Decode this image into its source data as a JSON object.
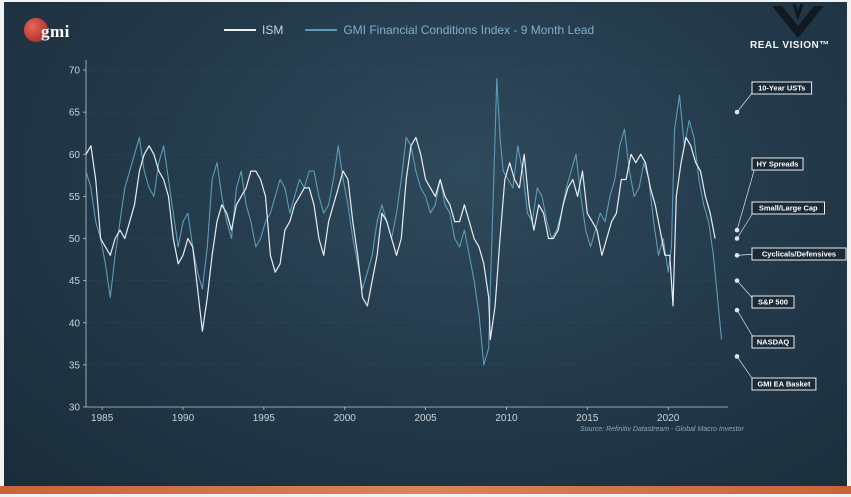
{
  "branding": {
    "gmi_logo": "gmi",
    "real_vision": "REAL VISION™"
  },
  "colors": {
    "ism": "#e8eef2",
    "gmi_fci": "#5d9bb8",
    "background": "#243b4c",
    "bottom_bar": "#c9643a"
  },
  "source": "Source: Refinitiv Datastream - Global Macro Investor",
  "chart_data": {
    "type": "line",
    "title": "",
    "xlabel": "",
    "ylabel": "",
    "xlim": [
      1984.0,
      2023.7
    ],
    "ylim": [
      30,
      70
    ],
    "x_ticks": [
      1985,
      1990,
      1995,
      2000,
      2005,
      2010,
      2015,
      2020
    ],
    "x_tick_labels": [
      "1985",
      "1990",
      "1995",
      "2000",
      "2005",
      "2010",
      "2015",
      "2020"
    ],
    "y_ticks": [
      30,
      35,
      40,
      45,
      50,
      55,
      60,
      65,
      70
    ],
    "y_tick_labels": [
      "30",
      "35",
      "40",
      "45",
      "50",
      "55",
      "60",
      "65",
      "70"
    ],
    "grid": true,
    "legend": "top-center",
    "series": [
      {
        "name": "ISM",
        "color": "#e8eef2",
        "x": [
          1984.0,
          1984.3,
          1984.6,
          1984.9,
          1985.2,
          1985.5,
          1985.8,
          1986.1,
          1986.4,
          1986.7,
          1987.0,
          1987.3,
          1987.6,
          1987.9,
          1988.2,
          1988.5,
          1988.8,
          1989.1,
          1989.4,
          1989.7,
          1990.0,
          1990.3,
          1990.6,
          1990.9,
          1991.2,
          1991.5,
          1991.8,
          1992.1,
          1992.4,
          1992.7,
          1993.0,
          1993.3,
          1993.6,
          1993.9,
          1994.2,
          1994.5,
          1994.8,
          1995.1,
          1995.4,
          1995.7,
          1996.0,
          1996.3,
          1996.6,
          1996.9,
          1997.2,
          1997.5,
          1997.8,
          1998.1,
          1998.4,
          1998.7,
          1999.0,
          1999.3,
          1999.6,
          1999.9,
          2000.2,
          2000.5,
          2000.8,
          2001.1,
          2001.4,
          2001.7,
          2002.0,
          2002.3,
          2002.6,
          2002.9,
          2003.2,
          2003.5,
          2003.8,
          2004.1,
          2004.4,
          2004.7,
          2005.0,
          2005.3,
          2005.6,
          2005.9,
          2006.2,
          2006.5,
          2006.8,
          2007.1,
          2007.4,
          2007.7,
          2008.0,
          2008.3,
          2008.6,
          2008.9,
          2009.0,
          2009.3,
          2009.6,
          2009.9,
          2010.2,
          2010.5,
          2010.8,
          2011.1,
          2011.4,
          2011.7,
          2012.0,
          2012.3,
          2012.6,
          2012.9,
          2013.2,
          2013.5,
          2013.8,
          2014.1,
          2014.4,
          2014.7,
          2015.0,
          2015.3,
          2015.6,
          2015.9,
          2016.2,
          2016.5,
          2016.8,
          2017.1,
          2017.4,
          2017.7,
          2018.0,
          2018.3,
          2018.6,
          2018.9,
          2019.2,
          2019.5,
          2019.8,
          2020.1,
          2020.3,
          2020.5,
          2020.8,
          2021.1,
          2021.4,
          2021.7,
          2022.0,
          2022.3,
          2022.6,
          2022.9
        ],
        "values": [
          60,
          61,
          57,
          50,
          49,
          48,
          50,
          51,
          50,
          52,
          54,
          58,
          60,
          61,
          60,
          58,
          57,
          55,
          50,
          47,
          48,
          50,
          49,
          44,
          39,
          43,
          48,
          52,
          54,
          53,
          51,
          54,
          55,
          56,
          58,
          58,
          57,
          55,
          48,
          46,
          47,
          51,
          52,
          54,
          55,
          56,
          56,
          54,
          50,
          48,
          52,
          54,
          56,
          58,
          57,
          52,
          48,
          43,
          42,
          45,
          48,
          53,
          52,
          50,
          48,
          50,
          57,
          61,
          62,
          60,
          57,
          56,
          55,
          57,
          55,
          54,
          52,
          52,
          54,
          52,
          50,
          49,
          47,
          43,
          38,
          42,
          50,
          57,
          59,
          57,
          56,
          60,
          54,
          51,
          54,
          53,
          50,
          50,
          51,
          54,
          56,
          57,
          55,
          58,
          53,
          52,
          51,
          48,
          50,
          52,
          53,
          57,
          57,
          60,
          59,
          60,
          59,
          56,
          54,
          51,
          48,
          48,
          42,
          55,
          59,
          62,
          61,
          59,
          58,
          55,
          53,
          50
        ]
      },
      {
        "name": "GMI Financial Conditions Index - 9 Month Lead",
        "color": "#5d9bb8",
        "x": [
          1984.0,
          1984.3,
          1984.6,
          1984.9,
          1985.2,
          1985.5,
          1985.8,
          1986.1,
          1986.4,
          1986.7,
          1987.0,
          1987.3,
          1987.6,
          1987.9,
          1988.2,
          1988.5,
          1988.8,
          1989.1,
          1989.4,
          1989.7,
          1990.0,
          1990.3,
          1990.6,
          1990.9,
          1991.2,
          1991.5,
          1991.8,
          1992.1,
          1992.4,
          1992.7,
          1993.0,
          1993.3,
          1993.6,
          1993.9,
          1994.2,
          1994.5,
          1994.8,
          1995.1,
          1995.4,
          1995.7,
          1996.0,
          1996.3,
          1996.6,
          1996.9,
          1997.2,
          1997.5,
          1997.8,
          1998.1,
          1998.4,
          1998.7,
          1999.0,
          1999.3,
          1999.6,
          1999.9,
          2000.2,
          2000.5,
          2000.8,
          2001.1,
          2001.4,
          2001.7,
          2002.0,
          2002.3,
          2002.6,
          2002.9,
          2003.2,
          2003.5,
          2003.8,
          2004.1,
          2004.4,
          2004.7,
          2005.0,
          2005.3,
          2005.6,
          2005.9,
          2006.2,
          2006.5,
          2006.8,
          2007.1,
          2007.4,
          2007.7,
          2008.0,
          2008.3,
          2008.6,
          2008.9,
          2009.0,
          2009.2,
          2009.4,
          2009.6,
          2009.8,
          2010.1,
          2010.4,
          2010.7,
          2011.0,
          2011.3,
          2011.6,
          2011.9,
          2012.2,
          2012.5,
          2012.8,
          2013.1,
          2013.4,
          2013.7,
          2014.0,
          2014.3,
          2014.6,
          2014.9,
          2015.2,
          2015.5,
          2015.8,
          2016.1,
          2016.4,
          2016.7,
          2017.0,
          2017.3,
          2017.6,
          2017.9,
          2018.2,
          2018.5,
          2018.8,
          2019.1,
          2019.4,
          2019.7,
          2020.0,
          2020.2,
          2020.4,
          2020.7,
          2021.0,
          2021.3,
          2021.6,
          2021.9,
          2022.2,
          2022.5,
          2022.8,
          2023.1,
          2023.3
        ],
        "values": [
          58,
          56,
          52,
          50,
          47,
          43,
          48,
          52,
          56,
          58,
          60,
          62,
          58,
          56,
          55,
          59,
          61,
          57,
          53,
          49,
          52,
          53,
          49,
          46,
          44,
          49,
          57,
          59,
          55,
          52,
          50,
          56,
          58,
          54,
          52,
          49,
          50,
          52,
          53,
          55,
          57,
          56,
          53,
          55,
          57,
          56,
          58,
          58,
          55,
          53,
          54,
          57,
          61,
          57,
          54,
          50,
          47,
          44,
          46,
          48,
          52,
          54,
          52,
          50,
          53,
          57,
          62,
          61,
          58,
          56,
          55,
          53,
          54,
          57,
          54,
          53,
          50,
          49,
          51,
          48,
          45,
          41,
          35,
          37,
          44,
          56,
          69,
          62,
          58,
          57,
          56,
          61,
          58,
          53,
          52,
          56,
          55,
          52,
          50,
          51,
          53,
          56,
          58,
          60,
          55,
          51,
          49,
          51,
          53,
          52,
          55,
          57,
          61,
          63,
          58,
          55,
          56,
          59,
          57,
          52,
          48,
          50,
          46,
          49,
          63,
          67,
          61,
          64,
          62,
          57,
          54,
          52,
          48,
          42,
          38
        ]
      }
    ],
    "annotations": [
      {
        "label": "10-Year USTs",
        "y": 65.0
      },
      {
        "label": "HY Spreads",
        "y": 51.0
      },
      {
        "label": "Small/Large Cap",
        "y": 50.0
      },
      {
        "label": "Cyclicals/Defensives",
        "y": 48.0
      },
      {
        "label": "S&P 500",
        "y": 45.0
      },
      {
        "label": "NASDAQ",
        "y": 41.5
      },
      {
        "label": "GMI EA Basket",
        "y": 36.0
      }
    ]
  }
}
